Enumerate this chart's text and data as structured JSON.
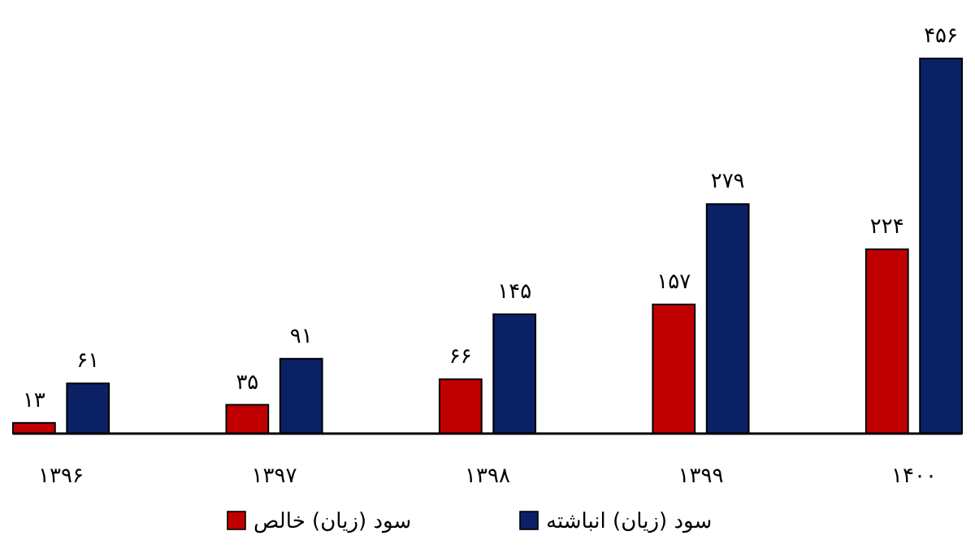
{
  "chart_data": {
    "type": "bar",
    "categories": [
      "۱۳۹۶",
      "۱۳۹۷",
      "۱۳۹۸",
      "۱۳۹۹",
      "۱۴۰۰"
    ],
    "series": [
      {
        "name": "سود (زیان) خالص",
        "color": "#c00000",
        "values": [
          13,
          35,
          66,
          157,
          224
        ],
        "value_labels": [
          "۱۳",
          "۳۵",
          "۶۶",
          "۱۵۷",
          "۲۲۴"
        ]
      },
      {
        "name": "سود (زیان) انباشته",
        "color": "#0b2166",
        "values": [
          61,
          91,
          145,
          279,
          456
        ],
        "value_labels": [
          "۶۱",
          "۹۱",
          "۱۴۵",
          "۲۷۹",
          "۴۵۶"
        ]
      }
    ],
    "legend": "bottom"
  }
}
